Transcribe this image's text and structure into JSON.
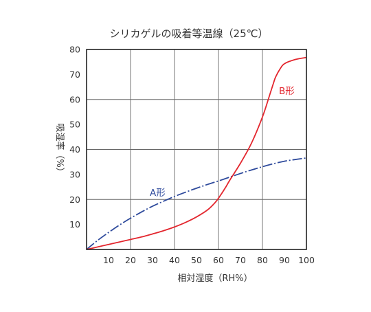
{
  "chart_data": {
    "type": "line",
    "title": "シリカゲルの吸着等温線（25℃）",
    "xlabel": "相対湿度（RH%）",
    "ylabel": "吸湿率（%）",
    "xlim": [
      0,
      100
    ],
    "ylim": [
      0,
      80
    ],
    "x_ticks": [
      10,
      20,
      30,
      40,
      50,
      60,
      70,
      80,
      90,
      100
    ],
    "y_ticks": [
      10,
      20,
      30,
      40,
      50,
      60,
      70,
      80
    ],
    "grid_x": [
      20,
      40,
      60,
      80
    ],
    "grid_y": [
      20,
      40,
      60
    ],
    "grid": true,
    "series": [
      {
        "name": "A形",
        "color": "#2e4a9c",
        "style": "dash-dot",
        "x": [
          0,
          5,
          10,
          15,
          20,
          25,
          30,
          35,
          40,
          45,
          50,
          55,
          60,
          65,
          70,
          75,
          80,
          85,
          90,
          95,
          100
        ],
        "y": [
          0,
          3.6,
          6.8,
          9.8,
          12.5,
          15.0,
          17.3,
          19.3,
          21.2,
          22.9,
          24.5,
          26.0,
          27.4,
          28.9,
          30.4,
          31.8,
          33.1,
          34.3,
          35.3,
          36.0,
          36.6
        ]
      },
      {
        "name": "B形",
        "color": "#e3262e",
        "style": "solid",
        "x": [
          0,
          5,
          10,
          15,
          20,
          25,
          30,
          35,
          40,
          45,
          50,
          55,
          58,
          60,
          63,
          65,
          70,
          75,
          80,
          83,
          85,
          86,
          88,
          90,
          95,
          100
        ],
        "y": [
          0,
          1.0,
          2.0,
          3.0,
          4.0,
          5.0,
          6.2,
          7.5,
          9.0,
          10.8,
          13.0,
          15.8,
          18.3,
          20.5,
          24.5,
          27.5,
          34.5,
          42.5,
          53.0,
          61.0,
          66.5,
          69.0,
          72.2,
          74.3,
          76.0,
          76.8
        ]
      }
    ]
  }
}
